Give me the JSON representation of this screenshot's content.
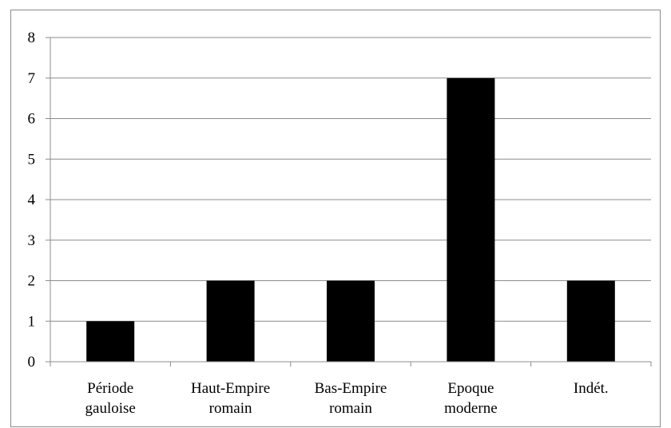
{
  "chart_data": {
    "type": "bar",
    "categories": [
      [
        "Période",
        "gauloise"
      ],
      [
        "Haut-Empire",
        "romain"
      ],
      [
        "Bas-Empire",
        "romain"
      ],
      [
        "Epoque",
        "moderne"
      ],
      [
        "Indét."
      ]
    ],
    "values": [
      1,
      2,
      2,
      7,
      2
    ],
    "yticks": [
      "0",
      "1",
      "2",
      "3",
      "4",
      "5",
      "6",
      "7",
      "8"
    ],
    "ylim": [
      0,
      8
    ],
    "grid": true,
    "legend": "none",
    "colors": {
      "bar": "#000000",
      "grid": "#8c8c8c",
      "axis": "#8c8c8c"
    }
  }
}
